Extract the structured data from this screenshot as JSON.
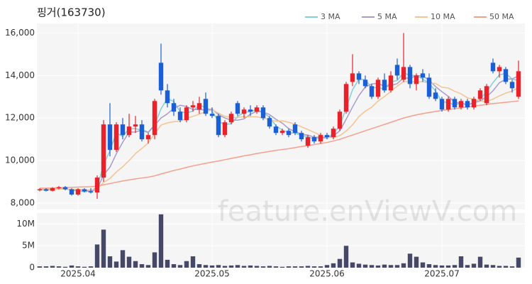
{
  "chart_data": [
    {
      "type": "candlestick",
      "title": "핑거(163730)",
      "watermark": "feature.enViewV.com",
      "up_color": "#e8212b",
      "down_color": "#1a5fd6",
      "open": [
        8600,
        8650,
        8580,
        8700,
        8750,
        8650,
        8400,
        8650,
        8550,
        8500,
        9200,
        11700,
        10500,
        11700,
        11200,
        11600,
        11700,
        11000,
        11200,
        14600,
        13300,
        12700,
        12300,
        11900,
        12500,
        12400,
        12900,
        12200,
        12100,
        11200,
        11800,
        12700,
        12200,
        12400,
        12300,
        12500,
        12000,
        11600,
        11300,
        11400,
        11700,
        11300,
        10700,
        11100,
        10900,
        11200,
        11100,
        11500,
        12300,
        13700,
        14100,
        13800,
        13500,
        13000,
        13800,
        13300,
        14500,
        13800,
        14400,
        13600,
        14100,
        13900,
        13200,
        12900,
        12400,
        12900,
        12500,
        12800,
        12500,
        12900,
        12700,
        14600,
        14200,
        14300,
        13700,
        13000
      ],
      "high": [
        8700,
        8700,
        8750,
        8800,
        8800,
        8700,
        8700,
        8700,
        8700,
        9300,
        11900,
        12700,
        11800,
        12000,
        12200,
        12100,
        11900,
        11300,
        12900,
        15500,
        13600,
        12900,
        12500,
        12600,
        12800,
        13000,
        13200,
        12500,
        12200,
        11900,
        12300,
        12800,
        12500,
        12600,
        12600,
        12600,
        12100,
        11700,
        11500,
        11500,
        11800,
        11400,
        11200,
        11200,
        11300,
        11300,
        11600,
        12400,
        13700,
        15000,
        14200,
        14000,
        13600,
        13900,
        14100,
        14200,
        14800,
        16000,
        14500,
        14100,
        14300,
        14100,
        13400,
        13000,
        13000,
        13000,
        12900,
        12900,
        13000,
        13400,
        13600,
        14800,
        14500,
        14400,
        13800,
        14700
      ],
      "low": [
        8550,
        8550,
        8550,
        8650,
        8600,
        8350,
        8350,
        8500,
        8450,
        8200,
        9000,
        10200,
        10400,
        11000,
        11100,
        11300,
        10900,
        10800,
        11000,
        13100,
        12500,
        12100,
        11800,
        11800,
        12300,
        12200,
        12100,
        12000,
        11100,
        11100,
        11700,
        12100,
        12000,
        12100,
        12200,
        11900,
        11500,
        11200,
        11200,
        11100,
        11200,
        10900,
        10600,
        10800,
        10800,
        11000,
        11000,
        11400,
        12200,
        13500,
        13600,
        13400,
        12900,
        12900,
        13200,
        13200,
        13800,
        13700,
        13400,
        13300,
        13700,
        12900,
        12800,
        12300,
        12300,
        12400,
        12400,
        12400,
        12400,
        12800,
        12600,
        14100,
        13900,
        13600,
        13200,
        12900
      ],
      "close": [
        8650,
        8580,
        8700,
        8750,
        8650,
        8400,
        8650,
        8550,
        8500,
        9200,
        11700,
        10500,
        11700,
        11200,
        11600,
        11700,
        11000,
        11200,
        12800,
        13300,
        12700,
        12300,
        11900,
        12500,
        12600,
        12700,
        12200,
        12100,
        11200,
        11800,
        12200,
        12200,
        12400,
        12300,
        12500,
        12000,
        11600,
        11300,
        11400,
        11200,
        11300,
        11000,
        11100,
        10900,
        11200,
        11100,
        11500,
        12300,
        13600,
        14100,
        13800,
        13500,
        13000,
        13800,
        13300,
        14000,
        14000,
        14400,
        13600,
        14000,
        13900,
        13000,
        12900,
        12400,
        12900,
        12500,
        12800,
        12500,
        12900,
        13300,
        13500,
        14200,
        14400,
        13700,
        13400,
        14200
      ],
      "series": [
        {
          "name": "3 MA",
          "color": "#7fd1d6",
          "values": [
            8650,
            8620,
            8643,
            8677,
            8700,
            8600,
            8567,
            8533,
            8567,
            8750,
            9800,
            10467,
            11300,
            11133,
            11500,
            11500,
            11433,
            11300,
            11667,
            12433,
            12933,
            12767,
            12300,
            12233,
            12333,
            12600,
            12500,
            12333,
            11833,
            11700,
            11733,
            12067,
            12267,
            12300,
            12400,
            12267,
            12033,
            11633,
            11433,
            11300,
            11300,
            11167,
            11133,
            11000,
            11067,
            11067,
            11267,
            11633,
            12467,
            13333,
            13833,
            13800,
            13433,
            13433,
            13367,
            13700,
            13767,
            14133,
            14000,
            14000,
            13833,
            13633,
            13267,
            12767,
            12733,
            12600,
            12733,
            12600,
            12733,
            12900,
            13233,
            13667,
            14033,
            14100,
            13833,
            13767
          ]
        },
        {
          "name": "5 MA",
          "color": "#a99bc8",
          "values": [
            8650,
            8640,
            8640,
            8660,
            8666,
            8616,
            8630,
            8600,
            8550,
            8660,
            9320,
            9690,
            10320,
            10860,
            11340,
            11340,
            11440,
            11340,
            11660,
            12000,
            12200,
            12460,
            12600,
            12540,
            12400,
            12400,
            12380,
            12420,
            12160,
            12000,
            11900,
            11900,
            11960,
            12180,
            12320,
            12280,
            12160,
            11940,
            11760,
            11500,
            11360,
            11240,
            11200,
            11100,
            11100,
            11060,
            11160,
            11400,
            11940,
            12520,
            13060,
            13460,
            13600,
            13640,
            13480,
            13520,
            13620,
            13900,
            13860,
            14000,
            13980,
            13780,
            13480,
            13240,
            13020,
            12740,
            12700,
            12620,
            12720,
            12800,
            13000,
            13280,
            13660,
            13820,
            13840,
            13980
          ]
        },
        {
          "name": "10 MA",
          "color": "#f3c48f",
          "values": [
            8660,
            8650,
            8650,
            8660,
            8660,
            8640,
            8640,
            8630,
            8610,
            8660,
            8970,
            9160,
            9460,
            9710,
            10000,
            10330,
            10570,
            10830,
            11260,
            11670,
            11770,
            11830,
            11850,
            11980,
            12080,
            12180,
            12300,
            12390,
            12230,
            12080,
            12030,
            12020,
            12070,
            12060,
            12060,
            11990,
            11930,
            11850,
            11870,
            11800,
            11710,
            11590,
            11460,
            11320,
            11190,
            11100,
            11090,
            11170,
            11390,
            11680,
            12070,
            12320,
            12510,
            12800,
            13010,
            13250,
            13500,
            13710,
            13710,
            13700,
            13710,
            13640,
            13630,
            13450,
            13410,
            13260,
            13140,
            12950,
            12880,
            12810,
            12770,
            12890,
            13040,
            13170,
            13270,
            13440
          ]
        },
        {
          "name": "50 MA",
          "color": "#f4a08c",
          "values": [
            8700,
            8700,
            8710,
            8720,
            8730,
            8740,
            8750,
            8760,
            8770,
            8800,
            8860,
            8920,
            8980,
            9040,
            9090,
            9140,
            9180,
            9220,
            9280,
            9370,
            9450,
            9530,
            9600,
            9680,
            9750,
            9810,
            9870,
            9930,
            9980,
            10040,
            10100,
            10160,
            10220,
            10270,
            10330,
            10380,
            10430,
            10480,
            10520,
            10560,
            10610,
            10660,
            10700,
            10750,
            10800,
            10850,
            10920,
            11000,
            11100,
            11200,
            11300,
            11400,
            11500,
            11600,
            11700,
            11800,
            11900,
            12000,
            12080,
            12150,
            12210,
            12260,
            12310,
            12360,
            12400,
            12440,
            12480,
            12520,
            12560,
            12600,
            12640,
            12680,
            12710,
            12740,
            12770,
            12800
          ]
        }
      ],
      "ylim": [
        7700,
        16450
      ],
      "yticks": [
        {
          "value": 8000,
          "label": "8,000"
        },
        {
          "value": 10000,
          "label": "10,000"
        },
        {
          "value": 12000,
          "label": "12,000"
        },
        {
          "value": 14000,
          "label": "14,000"
        },
        {
          "value": 16000,
          "label": "16,000"
        }
      ],
      "grid": true
    },
    {
      "type": "bar",
      "color": "#454866",
      "categories": [
        null,
        null,
        null,
        null,
        null,
        null,
        "2025.04",
        null,
        null,
        null,
        null,
        null,
        null,
        null,
        null,
        null,
        null,
        null,
        null,
        null,
        null,
        null,
        null,
        null,
        null,
        null,
        null,
        "2025.05",
        null,
        null,
        null,
        null,
        null,
        null,
        null,
        null,
        null,
        null,
        null,
        null,
        null,
        null,
        null,
        null,
        null,
        "2025.06",
        null,
        null,
        null,
        null,
        null,
        null,
        null,
        null,
        null,
        null,
        null,
        null,
        null,
        null,
        null,
        null,
        null,
        "2025.07",
        null,
        null,
        null,
        null,
        null,
        null,
        null,
        null,
        null,
        null,
        null,
        null
      ],
      "values": [
        300000,
        300000,
        400000,
        300000,
        200000,
        500000,
        300000,
        200000,
        300000,
        5300000,
        8700000,
        2600000,
        1400000,
        4000000,
        2500000,
        1500000,
        800000,
        600000,
        3500000,
        12200000,
        1800000,
        800000,
        600000,
        1500000,
        2600000,
        800000,
        600000,
        500000,
        600000,
        400000,
        500000,
        600000,
        400000,
        500000,
        400000,
        300000,
        400000,
        300000,
        200000,
        300000,
        300000,
        300000,
        400000,
        300000,
        300000,
        600000,
        1000000,
        2000000,
        5000000,
        1200000,
        900000,
        700000,
        600000,
        500000,
        700000,
        600000,
        600000,
        1000000,
        3200000,
        2500000,
        1200000,
        800000,
        600000,
        500000,
        500000,
        600000,
        2600000,
        600000,
        900000,
        2500000,
        700000,
        600000,
        400000,
        400000,
        300000,
        2300000
      ],
      "ylim": [
        0,
        12500000
      ],
      "yticks": [
        0,
        {
          "value": 5000000,
          "label": "5M"
        },
        {
          "value": 10000000,
          "label": "10M"
        }
      ],
      "grid": true
    }
  ]
}
